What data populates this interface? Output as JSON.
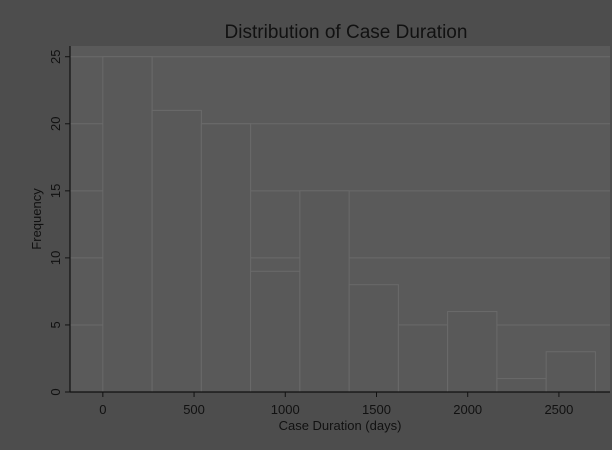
{
  "chart_data": {
    "type": "bar",
    "title": "Distribution of Case Duration",
    "xlabel": "Case Duration (days)",
    "ylabel": "Frequency",
    "bins": [
      {
        "x0": 0,
        "x1": 270,
        "count": 25
      },
      {
        "x0": 270,
        "x1": 540,
        "count": 21
      },
      {
        "x0": 540,
        "x1": 810,
        "count": 20
      },
      {
        "x0": 810,
        "x1": 1080,
        "count": 9
      },
      {
        "x0": 1080,
        "x1": 1350,
        "count": 15
      },
      {
        "x0": 1350,
        "x1": 1620,
        "count": 8
      },
      {
        "x0": 1620,
        "x1": 1890,
        "count": 5
      },
      {
        "x0": 1890,
        "x1": 2160,
        "count": 6
      },
      {
        "x0": 2160,
        "x1": 2430,
        "count": 1
      },
      {
        "x0": 2430,
        "x1": 2700,
        "count": 3
      }
    ],
    "xticks": [
      0,
      500,
      1000,
      1500,
      2000,
      2500
    ],
    "yticks": [
      0,
      5,
      10,
      15,
      20,
      25
    ],
    "xlim": [
      -180,
      2780
    ],
    "ylim": [
      0,
      25.8
    ],
    "grid": true,
    "legend": "none",
    "colors": {
      "background": "#4d4d4d",
      "plot_background": "#5a5a5a",
      "bar_fill": "#595959",
      "bar_edge": "#6a6a6a",
      "gridline": "#6b6b6b",
      "axis": "#111111",
      "text": "#111111"
    }
  }
}
